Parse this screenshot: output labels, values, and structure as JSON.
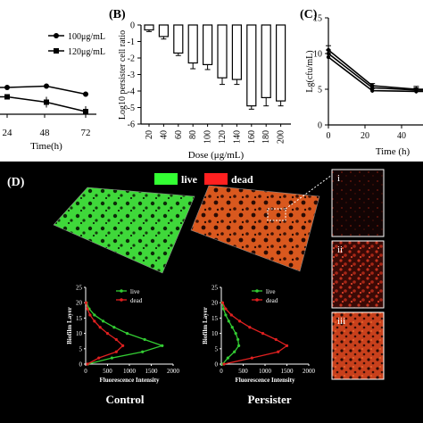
{
  "panels": {
    "A": {
      "label": "",
      "xlabel": "Time(h)",
      "xticks": [
        "24",
        "48",
        "72"
      ],
      "legend": [
        "100μg/mL",
        "120μg/mL"
      ]
    },
    "B": {
      "label": "(B)",
      "xlabel": "Dose (μg/mL)",
      "ylabel": "Log10 persister cell ratio",
      "categories": [
        "20",
        "40",
        "60",
        "80",
        "100",
        "120",
        "140",
        "160",
        "180",
        "200"
      ],
      "yticks": [
        "0",
        "-1",
        "-2",
        "-3",
        "-4",
        "-5",
        "-6"
      ]
    },
    "C": {
      "label": "(C)",
      "xlabel": "Time (h)",
      "ylabel": "Lg(cfu/mL)",
      "xticks": [
        "0",
        "20",
        "40"
      ],
      "yticks": [
        "0",
        "5",
        "10",
        "15"
      ]
    },
    "D": {
      "label": "(D)",
      "legend_live": "live",
      "legend_dead": "dead",
      "insets": [
        "i",
        "ii",
        "iii"
      ],
      "groups": [
        "Control",
        "Persister"
      ],
      "profile_ylabel": "Biofilm Layer",
      "profile_xlabel": "Fluorescence Intensity",
      "profile_xticks": [
        "0",
        "500",
        "1000",
        "1500",
        "2000"
      ],
      "profile_yticks": [
        "0",
        "5",
        "10",
        "15",
        "20",
        "25"
      ],
      "series_names": [
        "live",
        "dead"
      ]
    }
  },
  "colors": {
    "live": "#33cc33",
    "dead": "#e02020",
    "dark_bg": "#000000"
  },
  "chart_data": [
    {
      "type": "line",
      "panel": "A",
      "x": [
        24,
        48,
        72
      ],
      "series": [
        {
          "name": "100μg/mL",
          "values": [
            0.0,
            0.05,
            -0.25
          ],
          "errors": [
            0.05,
            0.08,
            0.1
          ]
        },
        {
          "name": "120μg/mL",
          "values": [
            -0.35,
            -0.55,
            -0.9
          ],
          "errors": [
            0.08,
            0.2,
            0.2
          ]
        }
      ]
    },
    {
      "type": "bar",
      "panel": "B",
      "categories": [
        "20",
        "40",
        "60",
        "80",
        "100",
        "120",
        "140",
        "160",
        "180",
        "200"
      ],
      "values": [
        -0.3,
        -0.7,
        -1.7,
        -2.3,
        -2.4,
        -3.2,
        -3.3,
        -4.9,
        -4.4,
        -4.6
      ],
      "errors": [
        0.1,
        0.15,
        0.15,
        0.35,
        0.3,
        0.4,
        0.3,
        0.2,
        0.5,
        0.3
      ],
      "ylim": [
        -6,
        0
      ]
    },
    {
      "type": "line",
      "panel": "C",
      "x": [
        0,
        24,
        48
      ],
      "series": [
        {
          "values": [
            10.5,
            5.5,
            5.0
          ],
          "errors": [
            0.6,
            0.3,
            0.4
          ]
        },
        {
          "values": [
            10.0,
            5.2,
            4.9
          ],
          "errors": [
            0.5,
            0.3,
            0.3
          ]
        },
        {
          "values": [
            9.5,
            4.8,
            4.7
          ],
          "errors": [
            0.5,
            0.3,
            0.3
          ]
        }
      ],
      "ylim": [
        0,
        15
      ],
      "xlim": [
        0,
        50
      ]
    },
    {
      "type": "line",
      "panel": "D-control",
      "y": [
        0,
        2,
        4,
        6,
        8,
        10,
        12,
        14,
        16,
        18,
        20
      ],
      "series": [
        {
          "name": "live",
          "values": [
            50,
            600,
            1300,
            1750,
            1350,
            950,
            650,
            400,
            200,
            80,
            20
          ]
        },
        {
          "name": "dead",
          "values": [
            40,
            300,
            700,
            850,
            700,
            500,
            330,
            200,
            100,
            40,
            10
          ]
        }
      ],
      "xlim": [
        0,
        2000
      ],
      "ylim": [
        0,
        25
      ]
    },
    {
      "type": "line",
      "panel": "D-persister",
      "y": [
        0,
        2,
        4,
        6,
        8,
        10,
        12,
        14,
        16,
        18,
        20
      ],
      "series": [
        {
          "name": "live",
          "values": [
            30,
            150,
            300,
            400,
            380,
            330,
            250,
            170,
            100,
            50,
            20
          ]
        },
        {
          "name": "dead",
          "values": [
            60,
            700,
            1300,
            1500,
            1250,
            950,
            650,
            420,
            230,
            100,
            30
          ]
        }
      ],
      "xlim": [
        0,
        2000
      ],
      "ylim": [
        0,
        25
      ]
    }
  ]
}
